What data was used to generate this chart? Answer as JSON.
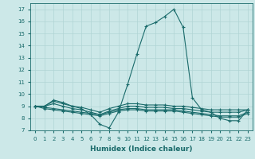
{
  "xlabel": "Humidex (Indice chaleur)",
  "bg_color": "#cce8e8",
  "line_color": "#1a6b6b",
  "grid_color": "#b0d4d4",
  "xlim": [
    -0.5,
    23.5
  ],
  "ylim": [
    7,
    17.5
  ],
  "yticks": [
    7,
    8,
    9,
    10,
    11,
    12,
    13,
    14,
    15,
    16,
    17
  ],
  "xticks": [
    0,
    1,
    2,
    3,
    4,
    5,
    6,
    7,
    8,
    9,
    10,
    11,
    12,
    13,
    14,
    15,
    16,
    17,
    18,
    19,
    20,
    21,
    22,
    23
  ],
  "series": [
    {
      "x": [
        0,
        1,
        2,
        3,
        4,
        5,
        6,
        7,
        8,
        9,
        10,
        11,
        12,
        13,
        14,
        15,
        16,
        17,
        18,
        19,
        20,
        21,
        22,
        23
      ],
      "y": [
        9.0,
        9.0,
        9.5,
        9.3,
        9.0,
        8.8,
        8.3,
        7.5,
        7.2,
        8.5,
        10.8,
        13.3,
        15.6,
        15.9,
        16.4,
        17.0,
        15.5,
        9.7,
        8.7,
        8.5,
        8.0,
        7.8,
        7.8,
        8.7
      ]
    },
    {
      "x": [
        0,
        1,
        2,
        3,
        4,
        5,
        6,
        7,
        8,
        9,
        10,
        11,
        12,
        13,
        14,
        15,
        16,
        17,
        18,
        19,
        20,
        21,
        22,
        23
      ],
      "y": [
        9.0,
        9.0,
        9.4,
        9.2,
        9.0,
        8.9,
        8.7,
        8.5,
        8.8,
        9.0,
        9.2,
        9.2,
        9.1,
        9.1,
        9.1,
        9.0,
        9.0,
        8.9,
        8.8,
        8.7,
        8.7,
        8.7,
        8.7,
        8.7
      ]
    },
    {
      "x": [
        0,
        1,
        2,
        3,
        4,
        5,
        6,
        7,
        8,
        9,
        10,
        11,
        12,
        13,
        14,
        15,
        16,
        17,
        18,
        19,
        20,
        21,
        22,
        23
      ],
      "y": [
        9.0,
        9.0,
        9.2,
        9.0,
        8.8,
        8.7,
        8.5,
        8.3,
        8.6,
        8.8,
        9.0,
        9.0,
        8.9,
        8.9,
        8.9,
        8.8,
        8.8,
        8.7,
        8.6,
        8.5,
        8.5,
        8.5,
        8.5,
        8.7
      ]
    },
    {
      "x": [
        0,
        1,
        2,
        3,
        4,
        5,
        6,
        7,
        8,
        9,
        10,
        11,
        12,
        13,
        14,
        15,
        16,
        17,
        18,
        19,
        20,
        21,
        22,
        23
      ],
      "y": [
        9.0,
        8.9,
        8.8,
        8.7,
        8.6,
        8.5,
        8.4,
        8.3,
        8.5,
        8.7,
        8.8,
        8.8,
        8.7,
        8.7,
        8.7,
        8.7,
        8.6,
        8.5,
        8.4,
        8.3,
        8.2,
        8.2,
        8.2,
        8.5
      ]
    },
    {
      "x": [
        0,
        1,
        2,
        3,
        4,
        5,
        6,
        7,
        8,
        9,
        10,
        11,
        12,
        13,
        14,
        15,
        16,
        17,
        18,
        19,
        20,
        21,
        22,
        23
      ],
      "y": [
        9.0,
        8.8,
        8.7,
        8.6,
        8.5,
        8.4,
        8.3,
        8.2,
        8.4,
        8.6,
        8.7,
        8.7,
        8.6,
        8.6,
        8.6,
        8.6,
        8.5,
        8.4,
        8.3,
        8.2,
        8.1,
        8.1,
        8.1,
        8.4
      ]
    }
  ]
}
